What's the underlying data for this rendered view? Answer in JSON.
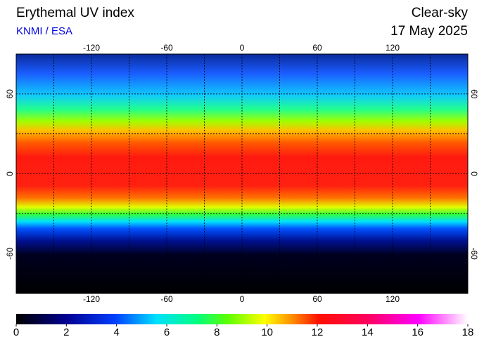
{
  "header": {
    "title": "Erythemal UV index",
    "source": "KNMI / ESA",
    "mode": "Clear-sky",
    "date": "17 May 2025"
  },
  "map": {
    "xlim": [
      -180,
      180
    ],
    "ylim": [
      -90,
      90
    ],
    "xticks": [
      -120,
      -60,
      0,
      60,
      120
    ],
    "yticks": [
      60,
      0,
      -60
    ],
    "xgrid": [
      -150,
      -120,
      -90,
      -60,
      -30,
      0,
      30,
      60,
      90,
      120,
      150
    ],
    "ygrid": [
      60,
      30,
      0,
      -30,
      -60
    ]
  },
  "colorbar": {
    "lim": [
      0,
      18
    ],
    "ticks": [
      0,
      2,
      4,
      6,
      8,
      10,
      12,
      14,
      16,
      18
    ]
  }
}
